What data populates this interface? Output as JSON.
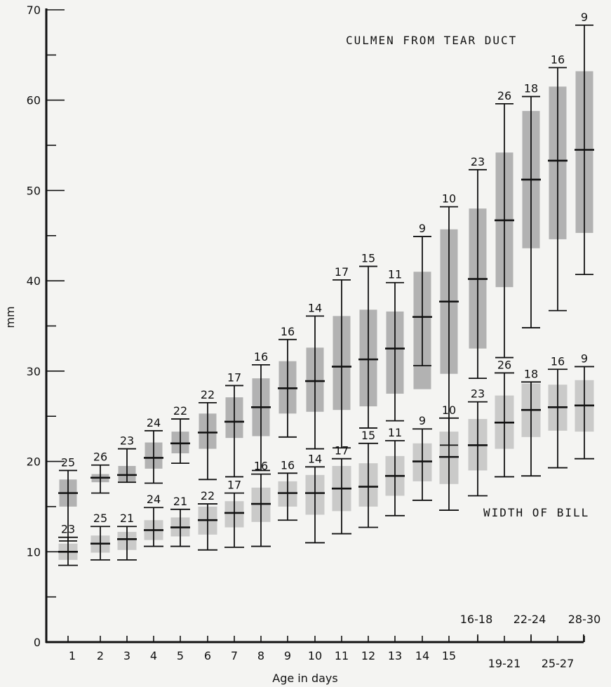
{
  "chart_data": {
    "type": "errorbar",
    "xlabel": "Age in days",
    "ylabel": "mm",
    "ylim": [
      0,
      70
    ],
    "yticks": [
      0,
      10,
      20,
      30,
      40,
      50,
      60,
      70
    ],
    "xtick_labels_primary": [
      "1",
      "2",
      "3",
      "4",
      "5",
      "6",
      "7",
      "8",
      "9",
      "10",
      "11",
      "12",
      "13",
      "14",
      "15",
      "16-18",
      "22-24",
      "28-30"
    ],
    "xtick_labels_secondary": [
      "19-21",
      "25-27"
    ],
    "categories": [
      "1",
      "2",
      "3",
      "4",
      "5",
      "6",
      "7",
      "8",
      "9",
      "10",
      "11",
      "12",
      "13",
      "14",
      "15",
      "16-18",
      "19-21",
      "22-24",
      "25-27",
      "28-30"
    ],
    "series": [
      {
        "name": "CULMEN FROM TEAR DUCT",
        "mean": [
          16.5,
          18.2,
          18.5,
          20.4,
          22.0,
          23.2,
          24.4,
          26.0,
          28.1,
          28.9,
          30.5,
          31.3,
          32.5,
          36.0,
          37.7,
          40.2,
          46.7,
          51.2,
          53.3,
          54.5
        ],
        "min": [
          11.2,
          16.5,
          17.7,
          17.6,
          19.8,
          18.0,
          18.3,
          19.0,
          22.7,
          21.4,
          21.5,
          23.7,
          24.5,
          30.6,
          21.8,
          29.2,
          31.5,
          34.8,
          36.7,
          40.7
        ],
        "max": [
          19.0,
          19.6,
          21.4,
          23.4,
          24.7,
          26.5,
          28.4,
          30.7,
          33.5,
          36.1,
          40.1,
          41.6,
          39.8,
          44.9,
          48.2,
          52.3,
          59.6,
          60.4,
          63.6,
          68.3
        ],
        "sd_low": [
          15.0,
          17.7,
          17.8,
          19.2,
          20.9,
          21.4,
          22.6,
          22.8,
          25.3,
          25.5,
          25.7,
          26.1,
          27.5,
          28.0,
          29.7,
          32.5,
          39.3,
          43.6,
          44.6,
          45.3
        ],
        "sd_high": [
          18.0,
          18.6,
          19.5,
          22.1,
          23.3,
          25.3,
          27.1,
          29.2,
          31.1,
          32.6,
          36.1,
          36.8,
          36.6,
          41.0,
          45.7,
          48.0,
          54.2,
          58.8,
          61.5,
          63.2
        ],
        "n": [
          "25",
          "26",
          "23",
          "24",
          "22",
          "22",
          "17",
          "16",
          "16",
          "14",
          "17",
          "15",
          "11",
          "9",
          "10",
          "23",
          "26",
          "18",
          "16",
          "9"
        ]
      },
      {
        "name": "WIDTH OF BILL",
        "mean": [
          10.0,
          10.9,
          11.4,
          12.4,
          12.7,
          13.5,
          14.3,
          15.3,
          16.5,
          16.5,
          17.0,
          17.2,
          18.4,
          20.0,
          20.5,
          21.8,
          24.3,
          25.7,
          26.0,
          26.2
        ],
        "min": [
          8.5,
          9.1,
          9.1,
          10.6,
          10.6,
          10.2,
          10.5,
          10.6,
          13.5,
          11.0,
          12.0,
          12.7,
          14.0,
          15.7,
          14.6,
          16.2,
          18.3,
          18.4,
          19.3,
          20.3
        ],
        "max": [
          11.6,
          12.8,
          12.8,
          14.9,
          14.7,
          15.3,
          16.5,
          18.6,
          18.7,
          19.4,
          20.3,
          22.0,
          22.3,
          23.6,
          24.8,
          26.6,
          29.8,
          28.8,
          30.2,
          30.5
        ],
        "sd_low": [
          9.1,
          9.9,
          10.2,
          11.3,
          11.7,
          11.9,
          12.7,
          13.3,
          15.0,
          14.1,
          14.5,
          15.0,
          16.2,
          17.8,
          17.5,
          19.0,
          21.4,
          22.7,
          23.4,
          23.3
        ],
        "sd_high": [
          10.9,
          11.8,
          12.2,
          13.5,
          13.8,
          15.0,
          15.6,
          17.1,
          17.8,
          18.5,
          19.5,
          19.8,
          20.6,
          22.0,
          23.3,
          24.7,
          27.3,
          28.6,
          28.5,
          29.0
        ],
        "n": [
          "23",
          "25",
          "21",
          "24",
          "21",
          "22",
          "17",
          "16",
          "16",
          "14",
          "17",
          "15",
          "11",
          "9",
          "10",
          "23",
          "26",
          "18",
          "16",
          "9"
        ]
      }
    ]
  }
}
